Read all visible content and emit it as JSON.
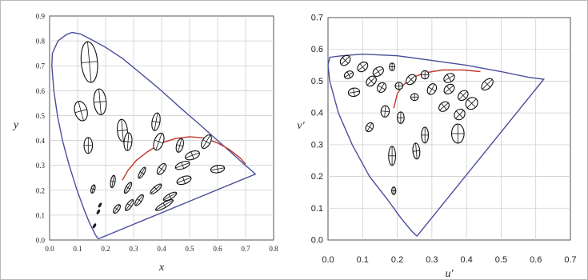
{
  "chart_data": [
    {
      "type": "scatter",
      "title": "",
      "xlabel": "x",
      "ylabel": "y",
      "xlim": [
        0,
        0.8
      ],
      "ylim": [
        0,
        0.9
      ],
      "x_ticks": [
        "0.0",
        "0.1",
        "0.2",
        "0.3",
        "0.4",
        "0.5",
        "0.6",
        "0.7",
        "0.8"
      ],
      "y_ticks": [
        "0.0",
        "0.1",
        "0.2",
        "0.3",
        "0.4",
        "0.5",
        "0.6",
        "0.7",
        "0.8",
        "0.9"
      ],
      "grid": true,
      "colors": {
        "locus": "#4a4f9c",
        "planckian": "#c0392b",
        "ellipse": "#111111"
      },
      "spectral_locus": [
        [
          0.175,
          0.005
        ],
        [
          0.174,
          0.005
        ],
        [
          0.17,
          0.01
        ],
        [
          0.164,
          0.02
        ],
        [
          0.155,
          0.04
        ],
        [
          0.142,
          0.07
        ],
        [
          0.124,
          0.12
        ],
        [
          0.098,
          0.2
        ],
        [
          0.07,
          0.3
        ],
        [
          0.046,
          0.4
        ],
        [
          0.028,
          0.5
        ],
        [
          0.015,
          0.6
        ],
        [
          0.008,
          0.7
        ],
        [
          0.01,
          0.75
        ],
        [
          0.03,
          0.8
        ],
        [
          0.06,
          0.825
        ],
        [
          0.08,
          0.834
        ],
        [
          0.11,
          0.828
        ],
        [
          0.15,
          0.805
        ],
        [
          0.2,
          0.774
        ],
        [
          0.26,
          0.73
        ],
        [
          0.33,
          0.665
        ],
        [
          0.4,
          0.599
        ],
        [
          0.47,
          0.528
        ],
        [
          0.54,
          0.46
        ],
        [
          0.6,
          0.4
        ],
        [
          0.65,
          0.35
        ],
        [
          0.69,
          0.309
        ],
        [
          0.71,
          0.29
        ],
        [
          0.735,
          0.265
        ],
        [
          0.175,
          0.005
        ]
      ],
      "planckian_locus": [
        [
          0.26,
          0.24
        ],
        [
          0.28,
          0.28
        ],
        [
          0.31,
          0.32
        ],
        [
          0.35,
          0.355
        ],
        [
          0.4,
          0.39
        ],
        [
          0.45,
          0.408
        ],
        [
          0.5,
          0.415
        ],
        [
          0.55,
          0.41
        ],
        [
          0.6,
          0.39
        ],
        [
          0.64,
          0.365
        ],
        [
          0.68,
          0.33
        ],
        [
          0.7,
          0.305
        ]
      ],
      "ellipses": [
        {
          "x": 0.16,
          "y": 0.057,
          "a": 0.003,
          "b": 0.009,
          "angle": 60
        },
        {
          "x": 0.174,
          "y": 0.113,
          "a": 0.003,
          "b": 0.009,
          "angle": 60
        },
        {
          "x": 0.18,
          "y": 0.14,
          "a": 0.003,
          "b": 0.009,
          "angle": 60
        },
        {
          "x": 0.155,
          "y": 0.205,
          "a": 0.007,
          "b": 0.017,
          "angle": 75
        },
        {
          "x": 0.142,
          "y": 0.715,
          "a": 0.029,
          "b": 0.082,
          "angle": 95
        },
        {
          "x": 0.18,
          "y": 0.555,
          "a": 0.022,
          "b": 0.052,
          "angle": 95
        },
        {
          "x": 0.112,
          "y": 0.518,
          "a": 0.022,
          "b": 0.04,
          "angle": 105
        },
        {
          "x": 0.138,
          "y": 0.38,
          "a": 0.015,
          "b": 0.032,
          "angle": 90
        },
        {
          "x": 0.26,
          "y": 0.44,
          "a": 0.018,
          "b": 0.045,
          "angle": 95
        },
        {
          "x": 0.28,
          "y": 0.395,
          "a": 0.014,
          "b": 0.036,
          "angle": 85
        },
        {
          "x": 0.226,
          "y": 0.235,
          "a": 0.008,
          "b": 0.025,
          "angle": 80
        },
        {
          "x": 0.24,
          "y": 0.125,
          "a": 0.009,
          "b": 0.02,
          "angle": 55
        },
        {
          "x": 0.285,
          "y": 0.14,
          "a": 0.009,
          "b": 0.026,
          "angle": 55
        },
        {
          "x": 0.32,
          "y": 0.16,
          "a": 0.009,
          "b": 0.026,
          "angle": 55
        },
        {
          "x": 0.28,
          "y": 0.21,
          "a": 0.008,
          "b": 0.025,
          "angle": 60
        },
        {
          "x": 0.38,
          "y": 0.475,
          "a": 0.014,
          "b": 0.036,
          "angle": 80
        },
        {
          "x": 0.39,
          "y": 0.395,
          "a": 0.016,
          "b": 0.036,
          "angle": 70
        },
        {
          "x": 0.33,
          "y": 0.27,
          "a": 0.008,
          "b": 0.025,
          "angle": 60
        },
        {
          "x": 0.4,
          "y": 0.285,
          "a": 0.012,
          "b": 0.025,
          "angle": 55
        },
        {
          "x": 0.38,
          "y": 0.205,
          "a": 0.009,
          "b": 0.028,
          "angle": 40
        },
        {
          "x": 0.43,
          "y": 0.175,
          "a": 0.009,
          "b": 0.03,
          "angle": 30
        },
        {
          "x": 0.41,
          "y": 0.14,
          "a": 0.009,
          "b": 0.04,
          "angle": 30
        },
        {
          "x": 0.465,
          "y": 0.38,
          "a": 0.012,
          "b": 0.028,
          "angle": 75
        },
        {
          "x": 0.51,
          "y": 0.34,
          "a": 0.014,
          "b": 0.03,
          "angle": 20
        },
        {
          "x": 0.475,
          "y": 0.3,
          "a": 0.012,
          "b": 0.03,
          "angle": 20
        },
        {
          "x": 0.48,
          "y": 0.24,
          "a": 0.013,
          "b": 0.03,
          "angle": 20
        },
        {
          "x": 0.56,
          "y": 0.395,
          "a": 0.014,
          "b": 0.03,
          "angle": 60
        },
        {
          "x": 0.6,
          "y": 0.285,
          "a": 0.013,
          "b": 0.028,
          "angle": 10
        }
      ]
    },
    {
      "type": "scatter",
      "title": "",
      "xlabel": "u'",
      "ylabel": "v'",
      "xlim": [
        0,
        0.7
      ],
      "ylim": [
        0,
        0.7
      ],
      "x_ticks": [
        "0.0",
        "0.1",
        "0.2",
        "0.3",
        "0.4",
        "0.5",
        "0.6",
        "0.7"
      ],
      "y_ticks": [
        "0.0",
        "0.1",
        "0.2",
        "0.3",
        "0.4",
        "0.5",
        "0.6",
        "0.7"
      ],
      "grid": true,
      "colors": {
        "locus": "#4a4f9c",
        "planckian": "#c0392b",
        "ellipse": "#111111"
      },
      "spectral_locus": [
        [
          0.257,
          0.012
        ],
        [
          0.24,
          0.03
        ],
        [
          0.21,
          0.07
        ],
        [
          0.17,
          0.13
        ],
        [
          0.12,
          0.2
        ],
        [
          0.07,
          0.3
        ],
        [
          0.03,
          0.4
        ],
        [
          0.005,
          0.5
        ],
        [
          0.0,
          0.55
        ],
        [
          0.005,
          0.575
        ],
        [
          0.04,
          0.58
        ],
        [
          0.1,
          0.585
        ],
        [
          0.2,
          0.58
        ],
        [
          0.3,
          0.565
        ],
        [
          0.4,
          0.55
        ],
        [
          0.5,
          0.53
        ],
        [
          0.58,
          0.512
        ],
        [
          0.623,
          0.506
        ],
        [
          0.257,
          0.012
        ]
      ],
      "planckian_locus": [
        [
          0.19,
          0.415
        ],
        [
          0.2,
          0.46
        ],
        [
          0.215,
          0.485
        ],
        [
          0.24,
          0.51
        ],
        [
          0.28,
          0.526
        ],
        [
          0.33,
          0.535
        ],
        [
          0.39,
          0.535
        ],
        [
          0.44,
          0.53
        ]
      ],
      "ellipses": [
        {
          "x": 0.05,
          "y": 0.565,
          "a": 0.012,
          "b": 0.018,
          "angle": 45
        },
        {
          "x": 0.1,
          "y": 0.545,
          "a": 0.012,
          "b": 0.018,
          "angle": 40
        },
        {
          "x": 0.145,
          "y": 0.53,
          "a": 0.012,
          "b": 0.018,
          "angle": 35
        },
        {
          "x": 0.185,
          "y": 0.545,
          "a": 0.008,
          "b": 0.012,
          "angle": 90
        },
        {
          "x": 0.06,
          "y": 0.52,
          "a": 0.01,
          "b": 0.015,
          "angle": 30
        },
        {
          "x": 0.125,
          "y": 0.5,
          "a": 0.012,
          "b": 0.018,
          "angle": 45
        },
        {
          "x": 0.155,
          "y": 0.48,
          "a": 0.012,
          "b": 0.016,
          "angle": 60
        },
        {
          "x": 0.075,
          "y": 0.465,
          "a": 0.012,
          "b": 0.018,
          "angle": 10
        },
        {
          "x": 0.24,
          "y": 0.505,
          "a": 0.012,
          "b": 0.018,
          "angle": 45
        },
        {
          "x": 0.28,
          "y": 0.52,
          "a": 0.012,
          "b": 0.012,
          "angle": 0
        },
        {
          "x": 0.205,
          "y": 0.485,
          "a": 0.01,
          "b": 0.012,
          "angle": 0
        },
        {
          "x": 0.25,
          "y": 0.45,
          "a": 0.01,
          "b": 0.012,
          "angle": 0
        },
        {
          "x": 0.165,
          "y": 0.405,
          "a": 0.012,
          "b": 0.018,
          "angle": 85
        },
        {
          "x": 0.21,
          "y": 0.385,
          "a": 0.01,
          "b": 0.018,
          "angle": 90
        },
        {
          "x": 0.12,
          "y": 0.355,
          "a": 0.01,
          "b": 0.015,
          "angle": 60
        },
        {
          "x": 0.3,
          "y": 0.475,
          "a": 0.012,
          "b": 0.018,
          "angle": 60
        },
        {
          "x": 0.35,
          "y": 0.51,
          "a": 0.012,
          "b": 0.018,
          "angle": 30
        },
        {
          "x": 0.35,
          "y": 0.475,
          "a": 0.012,
          "b": 0.018,
          "angle": 40
        },
        {
          "x": 0.335,
          "y": 0.42,
          "a": 0.012,
          "b": 0.018,
          "angle": 40
        },
        {
          "x": 0.39,
          "y": 0.455,
          "a": 0.012,
          "b": 0.018,
          "angle": 45
        },
        {
          "x": 0.415,
          "y": 0.43,
          "a": 0.016,
          "b": 0.02,
          "angle": 45
        },
        {
          "x": 0.46,
          "y": 0.49,
          "a": 0.012,
          "b": 0.022,
          "angle": 45
        },
        {
          "x": 0.38,
          "y": 0.395,
          "a": 0.014,
          "b": 0.018,
          "angle": 45
        },
        {
          "x": 0.375,
          "y": 0.335,
          "a": 0.018,
          "b": 0.03,
          "angle": 90
        },
        {
          "x": 0.28,
          "y": 0.33,
          "a": 0.01,
          "b": 0.025,
          "angle": 90
        },
        {
          "x": 0.255,
          "y": 0.28,
          "a": 0.01,
          "b": 0.025,
          "angle": 95
        },
        {
          "x": 0.185,
          "y": 0.265,
          "a": 0.01,
          "b": 0.03,
          "angle": 90
        },
        {
          "x": 0.19,
          "y": 0.155,
          "a": 0.006,
          "b": 0.012,
          "angle": 90
        }
      ]
    }
  ]
}
